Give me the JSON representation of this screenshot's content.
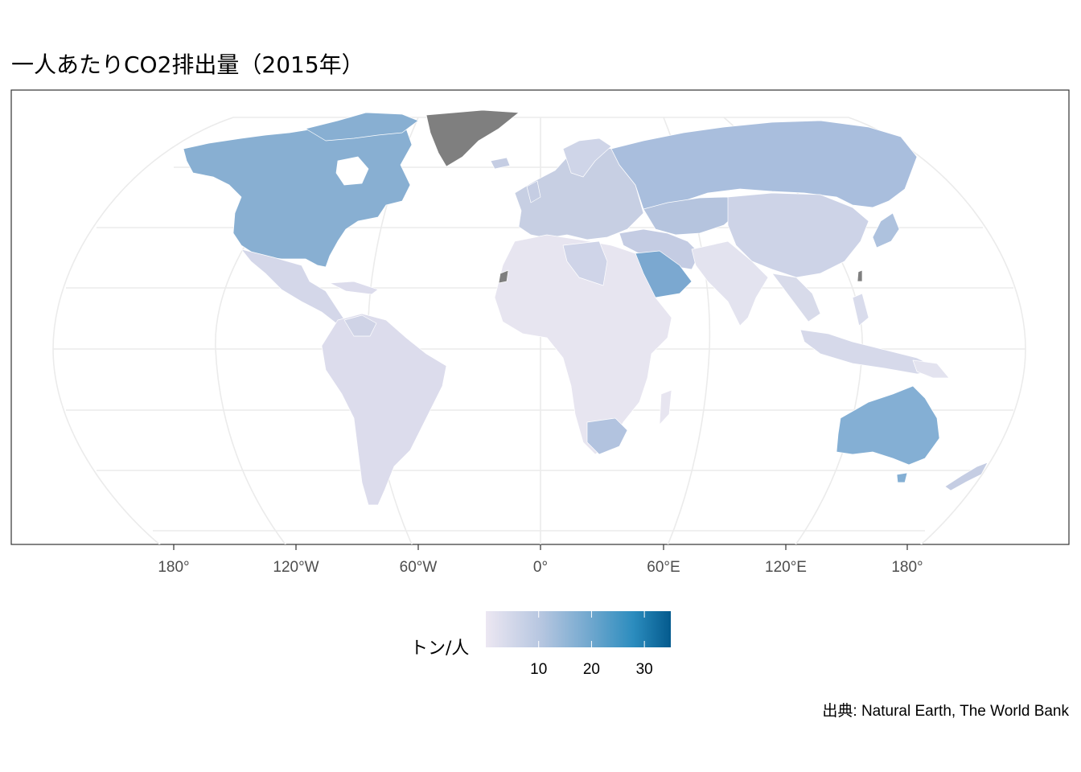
{
  "title": "一人あたりCO2排出量（2015年）",
  "caption": "出典: Natural Earth, The World Bank",
  "x_axis_labels": [
    "180°",
    "120°W",
    "60°W",
    "0°",
    "60°E",
    "120°E",
    "180°"
  ],
  "legend": {
    "title": "トン/人",
    "ticks": [
      "10",
      "20",
      "30"
    ],
    "min": 0,
    "max": 35,
    "tick_values": [
      10,
      20,
      30
    ],
    "colors": [
      "#ece7f2",
      "#a6bddb",
      "#2b8cbe",
      "#045a8d"
    ]
  },
  "map_data": {
    "projection": "Robinson",
    "fill_scale": "per-capita CO2 emissions (tons/person), 2015",
    "missing_color": "#7f7f7f",
    "countries": {
      "canada": 15.0,
      "united_states": 16.0,
      "russia": 12.0,
      "china": 7.0,
      "saudi_arabia": 19.0,
      "australia": 16.5,
      "south_africa": 9.0,
      "japan": 9.5,
      "kazakhstan": 14.0,
      "libya": 9.0,
      "brazil": 2.5,
      "india": 1.7,
      "greenland": null
    }
  }
}
